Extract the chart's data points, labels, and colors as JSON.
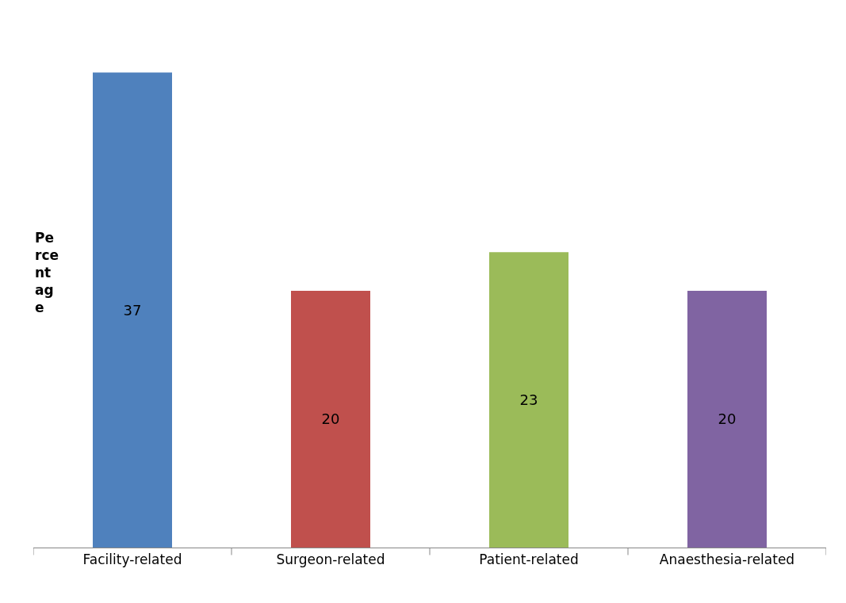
{
  "chart_data": {
    "type": "bar",
    "ylabel": "Pe\nrce\nnt\nag\ne",
    "categories": [
      "Facility-related",
      "Surgeon-related",
      "Patient-related",
      "Anaesthesia-related"
    ],
    "values": [
      37,
      20,
      23,
      20
    ],
    "colors": [
      "#4f81bd",
      "#c0504d",
      "#9bbb59",
      "#8064a2"
    ],
    "data_labels": true
  }
}
